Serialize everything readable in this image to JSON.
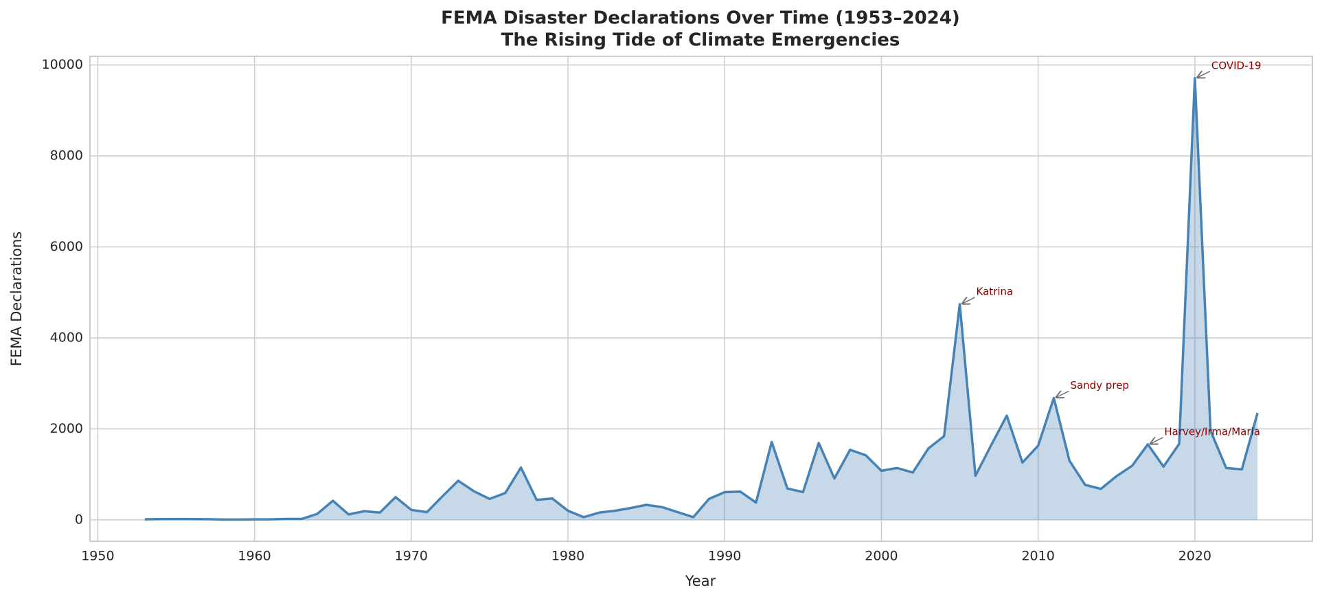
{
  "chart_data": {
    "type": "area-line",
    "title": "FEMA Disaster Declarations Over Time (1953–2024)",
    "subtitle": "The Rising Tide of Climate Emergencies",
    "x_label": "Year",
    "y_label": "FEMA Declarations",
    "x": [
      1953,
      1954,
      1955,
      1956,
      1957,
      1958,
      1959,
      1960,
      1961,
      1962,
      1963,
      1964,
      1965,
      1966,
      1967,
      1968,
      1969,
      1970,
      1971,
      1972,
      1973,
      1974,
      1975,
      1976,
      1977,
      1978,
      1979,
      1980,
      1981,
      1982,
      1983,
      1984,
      1985,
      1986,
      1987,
      1988,
      1989,
      1990,
      1991,
      1992,
      1993,
      1994,
      1995,
      1996,
      1997,
      1998,
      1999,
      2000,
      2001,
      2002,
      2003,
      2004,
      2005,
      2006,
      2007,
      2008,
      2009,
      2010,
      2011,
      2012,
      2013,
      2014,
      2015,
      2016,
      2017,
      2018,
      2019,
      2020,
      2021,
      2022,
      2023,
      2024
    ],
    "series": [
      {
        "name": "FEMA Declarations",
        "color": "#4682b4",
        "values": [
          13,
          17,
          18,
          16,
          15,
          7,
          7,
          12,
          12,
          20,
          20,
          130,
          420,
          120,
          190,
          160,
          500,
          220,
          170,
          520,
          860,
          630,
          460,
          590,
          1150,
          440,
          470,
          200,
          60,
          160,
          200,
          260,
          330,
          280,
          170,
          60,
          460,
          610,
          620,
          380,
          1710,
          690,
          610,
          1690,
          910,
          1540,
          1420,
          1080,
          1140,
          1040,
          1570,
          1840,
          4740,
          970,
          1640,
          2290,
          1260,
          1630,
          2680,
          1300,
          770,
          680,
          960,
          1190,
          1660,
          1170,
          1670,
          9710,
          1960,
          1140,
          1110,
          2350
        ]
      }
    ],
    "annotations": [
      {
        "text": "Katrina",
        "x": 2005
      },
      {
        "text": "Sandy prep",
        "x": 2011
      },
      {
        "text": "Harvey/Irma/Maria",
        "x": 2017
      },
      {
        "text": "COVID-19",
        "x": 2020
      }
    ],
    "xlim": [
      1949.5,
      2027.5
    ],
    "ylim": [
      -470,
      10190
    ],
    "xticks": [
      1950,
      1960,
      1970,
      1980,
      1990,
      2000,
      2010,
      2020
    ],
    "yticks": [
      0,
      2000,
      4000,
      6000,
      8000,
      10000
    ],
    "grid": true
  }
}
